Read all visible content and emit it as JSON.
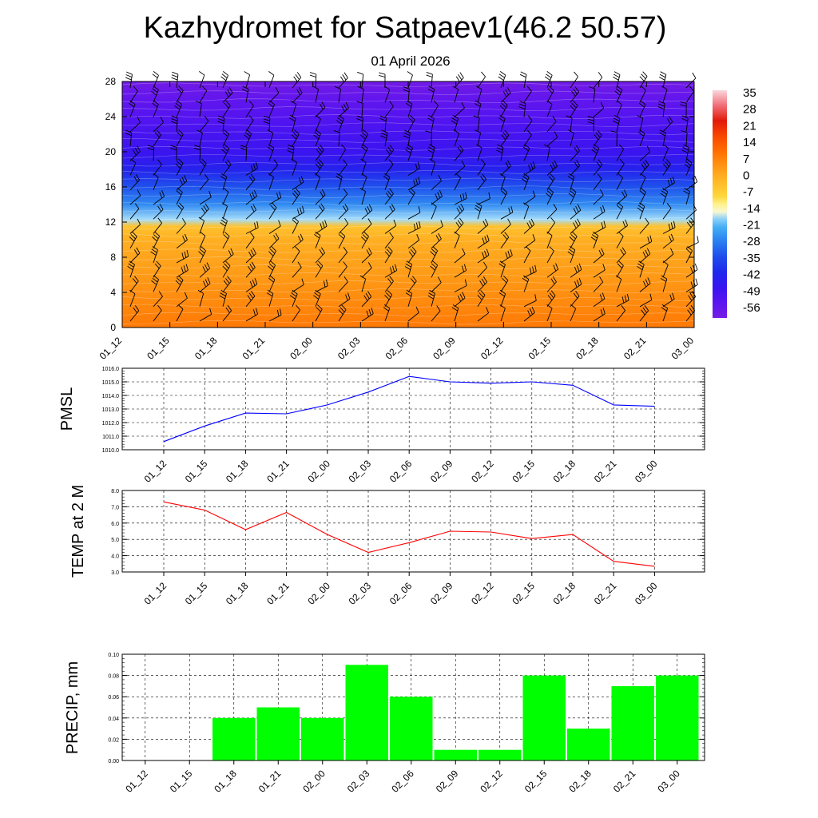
{
  "page": {
    "title": "Kazhydromet for Satpaev1(46.2 50.57)",
    "subtitle": "01 April 2026"
  },
  "chart_data": [
    {
      "type": "heatmap",
      "name": "height-temperature-wind",
      "title": "",
      "x_tick_labels": [
        "01_12",
        "01_15",
        "01_18",
        "01_21",
        "02_00",
        "02_03",
        "02_06",
        "02_09",
        "02_12",
        "02_15",
        "02_18",
        "02_21",
        "03_00"
      ],
      "y_ticks": [
        0,
        4,
        8,
        12,
        16,
        20,
        24,
        28
      ],
      "ylim": [
        0,
        28
      ],
      "colorbar_labels": [
        "35",
        "28",
        "21",
        "14",
        "7",
        "0",
        "-7",
        "-14",
        "-21",
        "-28",
        "-35",
        "-42",
        "-49",
        "-56"
      ],
      "colorbar_range": [
        -63,
        42
      ],
      "profile_levels_km": [
        0,
        2,
        4,
        6,
        8,
        10,
        11.5,
        12.3,
        14,
        16,
        18,
        20,
        22,
        24,
        26,
        28
      ],
      "profile_temps_c": [
        12,
        10,
        8,
        6,
        4,
        2,
        -2,
        -16,
        -26,
        -34,
        -44,
        -50,
        -52,
        -55,
        -58,
        -62
      ],
      "wind": "wind barbs across all levels"
    },
    {
      "type": "line",
      "name": "pmsl",
      "ylabel": "PMSL",
      "x_tick_labels": [
        "01_12",
        "01_15",
        "01_18",
        "01_21",
        "02_00",
        "02_03",
        "02_06",
        "02_09",
        "02_12",
        "02_15",
        "02_18",
        "02_21",
        "03_00"
      ],
      "y_tick_labels": [
        "1010.0",
        "1011.0",
        "1012.0",
        "1013.0",
        "1014.0",
        "1015.0",
        "1016.0"
      ],
      "ylim": [
        1010,
        1016
      ],
      "values": [
        1010.6,
        1011.75,
        1012.7,
        1012.65,
        1013.3,
        1014.25,
        1015.4,
        1015.0,
        1014.9,
        1015.0,
        1014.75,
        1013.3,
        1013.2
      ],
      "color": "#0000ff"
    },
    {
      "type": "line",
      "name": "temp2m",
      "ylabel": "TEMP at 2 M",
      "x_tick_labels": [
        "01_12",
        "01_15",
        "01_18",
        "01_21",
        "02_00",
        "02_03",
        "02_06",
        "02_09",
        "02_12",
        "02_15",
        "02_18",
        "02_21",
        "03_00"
      ],
      "y_tick_labels": [
        "3.0",
        "4.0",
        "5.0",
        "6.0",
        "7.0",
        "8.0"
      ],
      "ylim": [
        3,
        8
      ],
      "values": [
        7.3,
        6.8,
        5.6,
        6.65,
        5.3,
        4.2,
        4.8,
        5.5,
        5.45,
        5.05,
        5.3,
        3.65,
        3.35
      ],
      "color": "#ff0000"
    },
    {
      "type": "bar",
      "name": "precip",
      "ylabel": "PRECIP, mm",
      "categories": [
        "01_12",
        "01_15",
        "01_18",
        "01_21",
        "02_00",
        "02_03",
        "02_06",
        "02_09",
        "02_12",
        "02_15",
        "02_18",
        "02_21",
        "03_00"
      ],
      "y_tick_labels": [
        "0.00",
        "0.02",
        "0.04",
        "0.06",
        "0.08",
        "0.10"
      ],
      "ylim": [
        0,
        0.1
      ],
      "values": [
        0,
        0,
        0.04,
        0.05,
        0.04,
        0.09,
        0.06,
        0.01,
        0.01,
        0.08,
        0.03,
        0.07,
        0.08
      ],
      "color": "#00ff00"
    }
  ]
}
